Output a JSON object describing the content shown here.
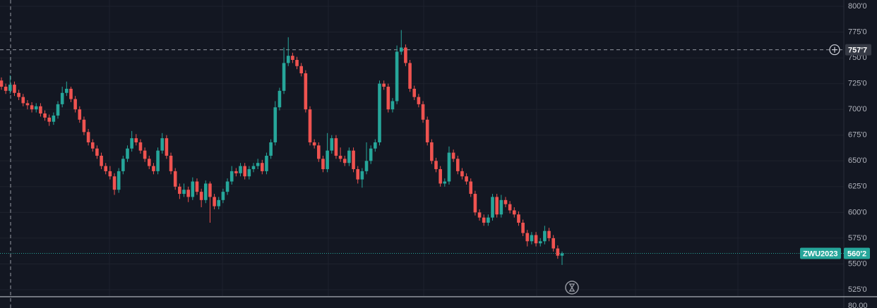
{
  "chart_data": {
    "type": "candlestick",
    "symbol": "ZWU2023",
    "up_color": "#26a69a",
    "down_color": "#ef5350",
    "ylim": [
      525,
      800
    ],
    "yticks": [
      {
        "value": 525,
        "label": "525'0"
      },
      {
        "value": 550,
        "label": "550'0"
      },
      {
        "value": 575,
        "label": "575'0"
      },
      {
        "value": 600,
        "label": "600'0"
      },
      {
        "value": 625,
        "label": "625'0"
      },
      {
        "value": 650,
        "label": "650'0"
      },
      {
        "value": 675,
        "label": "675'0"
      },
      {
        "value": 700,
        "label": "700'0"
      },
      {
        "value": 725,
        "label": "725'0"
      },
      {
        "value": 750,
        "label": "750'0"
      },
      {
        "value": 775,
        "label": "775'0"
      },
      {
        "value": 800,
        "label": "800'0"
      }
    ],
    "grid": true,
    "crosshair": {
      "value": 757.875,
      "label": "757'7"
    },
    "last_price": {
      "value": 560.25,
      "label": "560'2"
    },
    "lower_pane_label": "80.00",
    "candles": [
      [
        728,
        731,
        719,
        722
      ],
      [
        722,
        725,
        715,
        718
      ],
      [
        718,
        733,
        715,
        724
      ],
      [
        724,
        727,
        713,
        716
      ],
      [
        716,
        719,
        709,
        712
      ],
      [
        712,
        715,
        703,
        706
      ],
      [
        706,
        709,
        700,
        704
      ],
      [
        704,
        707,
        697,
        700
      ],
      [
        700,
        706,
        697,
        703
      ],
      [
        703,
        706,
        693,
        696
      ],
      [
        696,
        699,
        689,
        692
      ],
      [
        692,
        695,
        684,
        688
      ],
      [
        688,
        697,
        685,
        694
      ],
      [
        694,
        708,
        691,
        705
      ],
      [
        705,
        722,
        702,
        716
      ],
      [
        716,
        727,
        713,
        720
      ],
      [
        720,
        722,
        707,
        710
      ],
      [
        710,
        713,
        697,
        700
      ],
      [
        700,
        703,
        687,
        690
      ],
      [
        690,
        693,
        675,
        678
      ],
      [
        678,
        681,
        665,
        668
      ],
      [
        668,
        671,
        659,
        662
      ],
      [
        662,
        665,
        652,
        655
      ],
      [
        655,
        658,
        642,
        645
      ],
      [
        645,
        648,
        637,
        640
      ],
      [
        640,
        645,
        632,
        635
      ],
      [
        635,
        638,
        617,
        622
      ],
      [
        622,
        643,
        619,
        640
      ],
      [
        640,
        655,
        637,
        652
      ],
      [
        652,
        665,
        649,
        662
      ],
      [
        662,
        679,
        659,
        672
      ],
      [
        672,
        676,
        665,
        668
      ],
      [
        668,
        671,
        657,
        660
      ],
      [
        660,
        663,
        649,
        652
      ],
      [
        652,
        655,
        642,
        645
      ],
      [
        645,
        648,
        637,
        640
      ],
      [
        640,
        663,
        637,
        660
      ],
      [
        660,
        677,
        657,
        672
      ],
      [
        672,
        675,
        652,
        655
      ],
      [
        655,
        658,
        637,
        640
      ],
      [
        640,
        643,
        622,
        625
      ],
      [
        625,
        628,
        613,
        618
      ],
      [
        618,
        628,
        615,
        622
      ],
      [
        622,
        625,
        610,
        615
      ],
      [
        615,
        634,
        612,
        630
      ],
      [
        630,
        633,
        617,
        620
      ],
      [
        620,
        623,
        605,
        612
      ],
      [
        612,
        631,
        609,
        628
      ],
      [
        628,
        630,
        590,
        615
      ],
      [
        615,
        618,
        603,
        606
      ],
      [
        606,
        615,
        603,
        612
      ],
      [
        612,
        623,
        609,
        620
      ],
      [
        620,
        633,
        617,
        630
      ],
      [
        630,
        645,
        627,
        640
      ],
      [
        640,
        643,
        635,
        638
      ],
      [
        638,
        648,
        635,
        645
      ],
      [
        645,
        648,
        632,
        635
      ],
      [
        635,
        645,
        632,
        642
      ],
      [
        642,
        648,
        639,
        645
      ],
      [
        645,
        652,
        642,
        648
      ],
      [
        648,
        651,
        637,
        640
      ],
      [
        640,
        658,
        637,
        655
      ],
      [
        655,
        671,
        652,
        668
      ],
      [
        668,
        708,
        665,
        702
      ],
      [
        702,
        721,
        699,
        718
      ],
      [
        718,
        760,
        715,
        745
      ],
      [
        745,
        770,
        742,
        752
      ],
      [
        752,
        755,
        745,
        748
      ],
      [
        748,
        751,
        739,
        742
      ],
      [
        742,
        745,
        732,
        735
      ],
      [
        735,
        738,
        697,
        700
      ],
      [
        700,
        703,
        665,
        668
      ],
      [
        668,
        671,
        662,
        665
      ],
      [
        665,
        668,
        649,
        652
      ],
      [
        652,
        655,
        639,
        642
      ],
      [
        642,
        677,
        639,
        660
      ],
      [
        660,
        675,
        657,
        672
      ],
      [
        672,
        675,
        652,
        655
      ],
      [
        655,
        663,
        649,
        652
      ],
      [
        652,
        655,
        645,
        648
      ],
      [
        648,
        663,
        645,
        660
      ],
      [
        660,
        663,
        639,
        642
      ],
      [
        642,
        645,
        628,
        632
      ],
      [
        632,
        643,
        624,
        640
      ],
      [
        640,
        668,
        637,
        650
      ],
      [
        650,
        665,
        647,
        662
      ],
      [
        662,
        671,
        659,
        668
      ],
      [
        668,
        728,
        665,
        725
      ],
      [
        725,
        728,
        719,
        722
      ],
      [
        722,
        725,
        697,
        700
      ],
      [
        700,
        711,
        697,
        708
      ],
      [
        708,
        762,
        705,
        756
      ],
      [
        756,
        777,
        753,
        760
      ],
      [
        760,
        763,
        742,
        745
      ],
      [
        745,
        748,
        717,
        720
      ],
      [
        720,
        723,
        709,
        712
      ],
      [
        712,
        715,
        702,
        705
      ],
      [
        705,
        708,
        687,
        690
      ],
      [
        690,
        693,
        665,
        668
      ],
      [
        668,
        671,
        647,
        650
      ],
      [
        650,
        653,
        639,
        642
      ],
      [
        642,
        645,
        625,
        628
      ],
      [
        628,
        633,
        625,
        630
      ],
      [
        630,
        664,
        627,
        658
      ],
      [
        658,
        661,
        649,
        652
      ],
      [
        652,
        655,
        637,
        640
      ],
      [
        640,
        643,
        632,
        635
      ],
      [
        635,
        638,
        627,
        630
      ],
      [
        630,
        633,
        615,
        618
      ],
      [
        618,
        621,
        597,
        600
      ],
      [
        600,
        603,
        592,
        595
      ],
      [
        595,
        598,
        587,
        590
      ],
      [
        590,
        598,
        587,
        595
      ],
      [
        595,
        618,
        592,
        615
      ],
      [
        615,
        618,
        595,
        598
      ],
      [
        598,
        617,
        595,
        612
      ],
      [
        612,
        615,
        605,
        608
      ],
      [
        608,
        611,
        599,
        602
      ],
      [
        602,
        605,
        595,
        598
      ],
      [
        598,
        601,
        587,
        590
      ],
      [
        590,
        593,
        577,
        580
      ],
      [
        580,
        583,
        567,
        572
      ],
      [
        572,
        581,
        569,
        578
      ],
      [
        578,
        581,
        567,
        570
      ],
      [
        570,
        575,
        567,
        572
      ],
      [
        572,
        587,
        569,
        582
      ],
      [
        582,
        585,
        572,
        575
      ],
      [
        575,
        578,
        562,
        565
      ],
      [
        565,
        568,
        555,
        558
      ],
      [
        558,
        562,
        549,
        560.25
      ]
    ]
  }
}
